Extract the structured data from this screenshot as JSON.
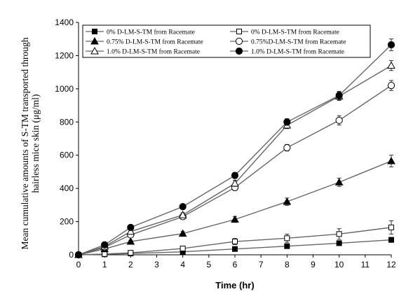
{
  "chart_data": {
    "type": "line",
    "title": "",
    "xlabel": "Time (hr)",
    "ylabel_lines": [
      "Mean cumulative  amounts of S-TM transported  through",
      "hairless mice skin (μg/ml)"
    ],
    "xlim": [
      0,
      12
    ],
    "ylim": [
      0,
      1400
    ],
    "x_ticks": [
      "0",
      "1",
      "2",
      "3",
      "4",
      "5",
      "6",
      "7",
      "8",
      "9",
      "10",
      "11",
      "12"
    ],
    "y_ticks": [
      "0",
      "200",
      "400",
      "600",
      "800",
      "1000",
      "1200",
      "1400"
    ],
    "grid": false,
    "legend_position": "top",
    "x": [
      0,
      1,
      2,
      4,
      6,
      8,
      10,
      12
    ],
    "series": [
      {
        "name": "0% D-LM-S-TM from Racemate",
        "marker": "square-filled",
        "values": [
          0,
          3,
          8,
          18,
          35,
          52,
          70,
          90
        ],
        "errors": [
          0,
          3,
          4,
          6,
          8,
          10,
          12,
          15
        ]
      },
      {
        "name": "0% D-LM-S-TM from Racemate",
        "marker": "square-open",
        "values": [
          0,
          5,
          12,
          38,
          80,
          100,
          125,
          165
        ],
        "errors": [
          0,
          4,
          6,
          12,
          18,
          25,
          32,
          40
        ]
      },
      {
        "name": "0.75% D-LM-S-TM from Racemate",
        "marker": "triangle-filled",
        "values": [
          0,
          35,
          80,
          128,
          213,
          320,
          437,
          565
        ],
        "errors": [
          0,
          6,
          8,
          12,
          18,
          22,
          25,
          35
        ]
      },
      {
        "name": "0.75%D-LM-S-TM from Racemate",
        "marker": "circle-open",
        "values": [
          0,
          45,
          120,
          230,
          405,
          645,
          810,
          1020
        ],
        "errors": [
          0,
          6,
          10,
          14,
          18,
          20,
          28,
          30
        ]
      },
      {
        "name": "1.0% D-LM-S-TM from Racemate",
        "marker": "triangle-open",
        "values": [
          0,
          50,
          140,
          240,
          430,
          780,
          955,
          1140
        ],
        "errors": [
          0,
          6,
          10,
          14,
          18,
          20,
          25,
          30
        ]
      },
      {
        "name": "1.0% D-LM-S-TM from Racemate",
        "marker": "circle-filled",
        "values": [
          0,
          60,
          165,
          290,
          478,
          800,
          960,
          1265
        ],
        "errors": [
          0,
          6,
          10,
          14,
          18,
          20,
          25,
          35
        ]
      }
    ]
  }
}
